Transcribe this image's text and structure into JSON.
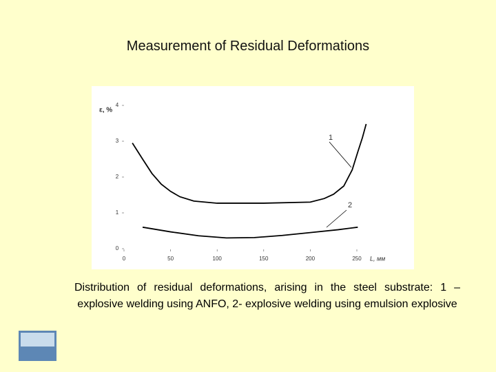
{
  "slide_title": "Measurement of Residual Deformations",
  "chart_data": {
    "type": "line",
    "y_label": "ε, %",
    "x_label": "L, мм",
    "xlim": [
      0,
      270
    ],
    "ylim": [
      0,
      4
    ],
    "xticks": [
      0,
      50,
      100,
      150,
      200,
      250
    ],
    "yticks": [
      0,
      1,
      2,
      3,
      4
    ],
    "grid": false,
    "series": [
      {
        "name": "1",
        "color": "#000000",
        "x": [
          9,
          20,
          30,
          40,
          50,
          60,
          75,
          100,
          150,
          200,
          215,
          225,
          236,
          245,
          251,
          256,
          260
        ],
        "values": [
          2.95,
          2.5,
          2.1,
          1.8,
          1.6,
          1.45,
          1.33,
          1.27,
          1.27,
          1.3,
          1.4,
          1.52,
          1.75,
          2.2,
          2.7,
          3.1,
          3.48
        ]
      },
      {
        "name": "2",
        "color": "#000000",
        "x": [
          20,
          50,
          80,
          110,
          140,
          170,
          200,
          230,
          251
        ],
        "values": [
          0.6,
          0.47,
          0.36,
          0.3,
          0.31,
          0.37,
          0.45,
          0.53,
          0.6
        ]
      }
    ]
  },
  "caption": "Distribution of residual deformations, arising in the steel substrate:    1 – explosive welding using ANFO, 2- explosive welding using emulsion explosive"
}
